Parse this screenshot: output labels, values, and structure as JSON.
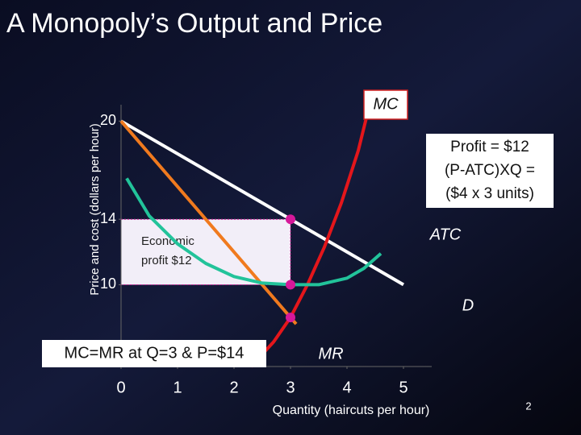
{
  "chart_data": {
    "type": "line",
    "title": "A Monopoly’s Output and Price",
    "x_label": "Quantity (haircuts per hour)",
    "y_label": "Price and cost (dollars per hour)",
    "xlim": [
      0,
      5.5
    ],
    "ylim": [
      5,
      21
    ],
    "xticks": [
      0,
      1,
      2,
      3,
      4,
      5
    ],
    "yticks": [
      10,
      14,
      20
    ],
    "series": [
      {
        "name": "D",
        "color": "#ffffff",
        "x": [
          0,
          5
        ],
        "values": [
          20,
          10
        ]
      },
      {
        "name": "MR",
        "color": "#f07a1e",
        "x": [
          0,
          3.1
        ],
        "values": [
          20,
          7.6
        ]
      },
      {
        "name": "MC",
        "color": "#e4161b",
        "x": [
          2.3,
          2.7,
          3,
          3.3,
          3.6,
          3.9,
          4.2,
          4.4
        ],
        "values": [
          5,
          6.5,
          8,
          10,
          12.3,
          15,
          18.2,
          21
        ]
      },
      {
        "name": "ATC",
        "color": "#22c39a",
        "x": [
          0.1,
          0.5,
          1,
          1.5,
          2,
          2.5,
          3,
          3.5,
          4,
          4.3,
          4.6
        ],
        "values": [
          16.5,
          14.2,
          12.5,
          11.3,
          10.5,
          10.1,
          10,
          10,
          10.4,
          11,
          11.9
        ]
      }
    ],
    "points": [
      {
        "x": 3,
        "y": 14
      },
      {
        "x": 3,
        "y": 10
      },
      {
        "x": 3,
        "y": 8
      }
    ],
    "point_color": "#d6189a",
    "annotations": {
      "profit_box": [
        "Profit = $12",
        "(P-ATC)XQ =",
        "($4 x 3 units)"
      ],
      "economic_profit": [
        "Economic",
        "profit $12"
      ],
      "condition": "MC=MR at Q=3 & P=$14"
    },
    "page_number": "2"
  }
}
